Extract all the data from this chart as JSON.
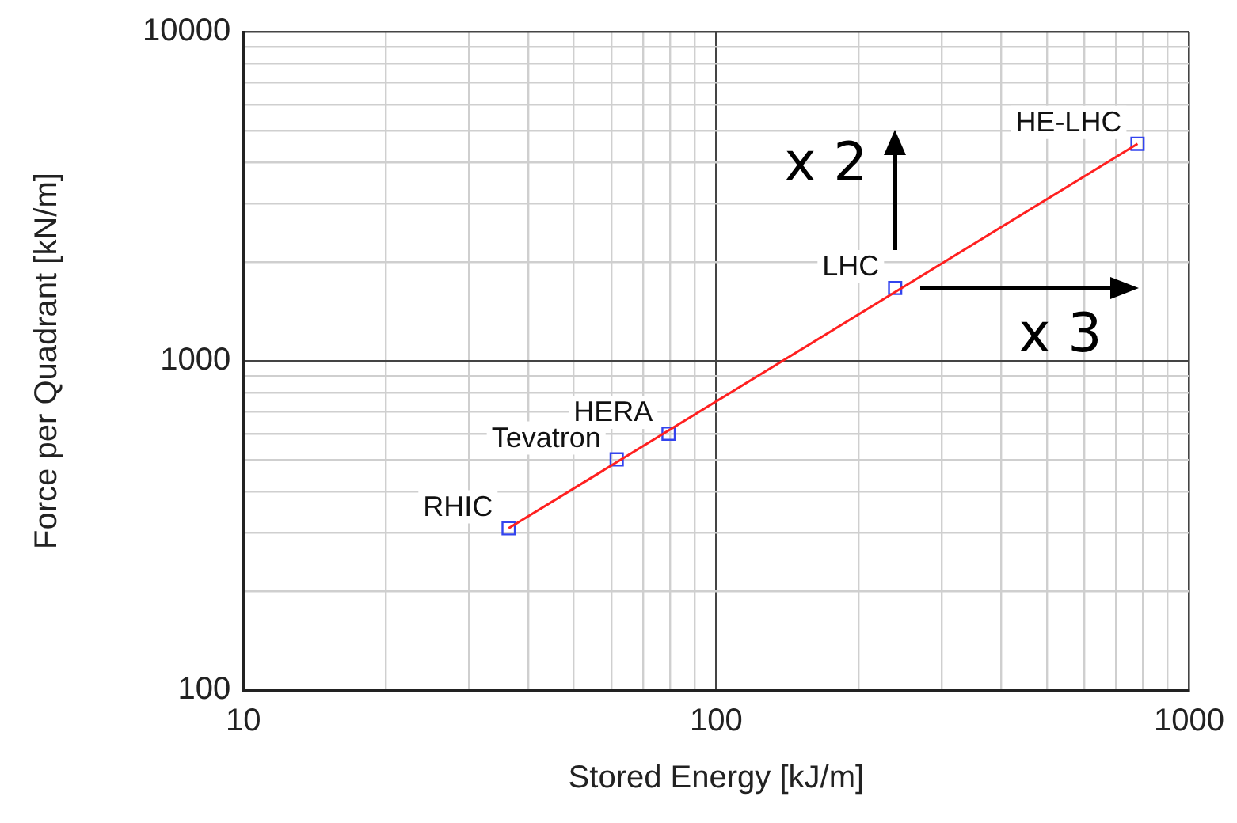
{
  "chart_data": {
    "type": "scatter",
    "xlabel": "Stored Energy [kJ/m]",
    "ylabel": "Force per Quadrant [kN/m]",
    "log": "xy",
    "grid": true,
    "legend": false,
    "xlim": [
      10,
      1000
    ],
    "ylim": [
      100,
      10000
    ],
    "xticks": [
      10,
      {
        "value": 20,
        "label": null
      },
      {
        "value": 30,
        "label": null
      },
      {
        "value": 40,
        "label": null
      },
      {
        "value": 50,
        "label": null
      },
      {
        "value": 60,
        "label": null
      },
      {
        "value": 70,
        "label": null
      },
      {
        "value": 80,
        "label": null
      },
      {
        "value": 90,
        "label": null
      },
      100,
      {
        "value": 200,
        "label": null
      },
      {
        "value": 300,
        "label": null
      },
      {
        "value": 400,
        "label": null
      },
      {
        "value": 500,
        "label": null
      },
      {
        "value": 600,
        "label": null
      },
      {
        "value": 700,
        "label": null
      },
      {
        "value": 800,
        "label": null
      },
      {
        "value": 900,
        "label": null
      },
      1000
    ],
    "yticks": [
      100,
      {
        "value": 200,
        "label": null
      },
      {
        "value": 300,
        "label": null
      },
      {
        "value": 400,
        "label": null
      },
      {
        "value": 500,
        "label": null
      },
      {
        "value": 600,
        "label": null
      },
      {
        "value": 700,
        "label": null
      },
      {
        "value": 800,
        "label": null
      },
      {
        "value": 900,
        "label": null
      },
      1000,
      {
        "value": 2000,
        "label": null
      },
      {
        "value": 3000,
        "label": null
      },
      {
        "value": 4000,
        "label": null
      },
      {
        "value": 5000,
        "label": null
      },
      {
        "value": 6000,
        "label": null
      },
      {
        "value": 7000,
        "label": null
      },
      {
        "value": 8000,
        "label": null
      },
      {
        "value": 9000,
        "label": null
      },
      10000
    ],
    "series": [
      {
        "type": "line",
        "color": "#ff2020",
        "marker": "none",
        "line_style": "solid",
        "x": [
          36.4,
          778
        ],
        "values": [
          310,
          4565
        ]
      },
      {
        "color": "#3344ee",
        "marker": "square",
        "x": [
          36.4,
          61.6,
          79.3,
          239,
          778
        ],
        "values": [
          310,
          502,
          601,
          1665,
          4565
        ]
      }
    ],
    "annotations": [
      {
        "text": "RHIC",
        "x": 36.4,
        "y": 310
      },
      {
        "text": "Tevatron",
        "x": 61.6,
        "y": 502
      },
      {
        "text": "HERA",
        "x": 79.3,
        "y": 601
      },
      {
        "text": "LHC",
        "x": 239,
        "y": 1665
      },
      {
        "text": "HE-LHC",
        "x": 778,
        "y": 4565
      },
      "x 2",
      "x 3"
    ]
  }
}
